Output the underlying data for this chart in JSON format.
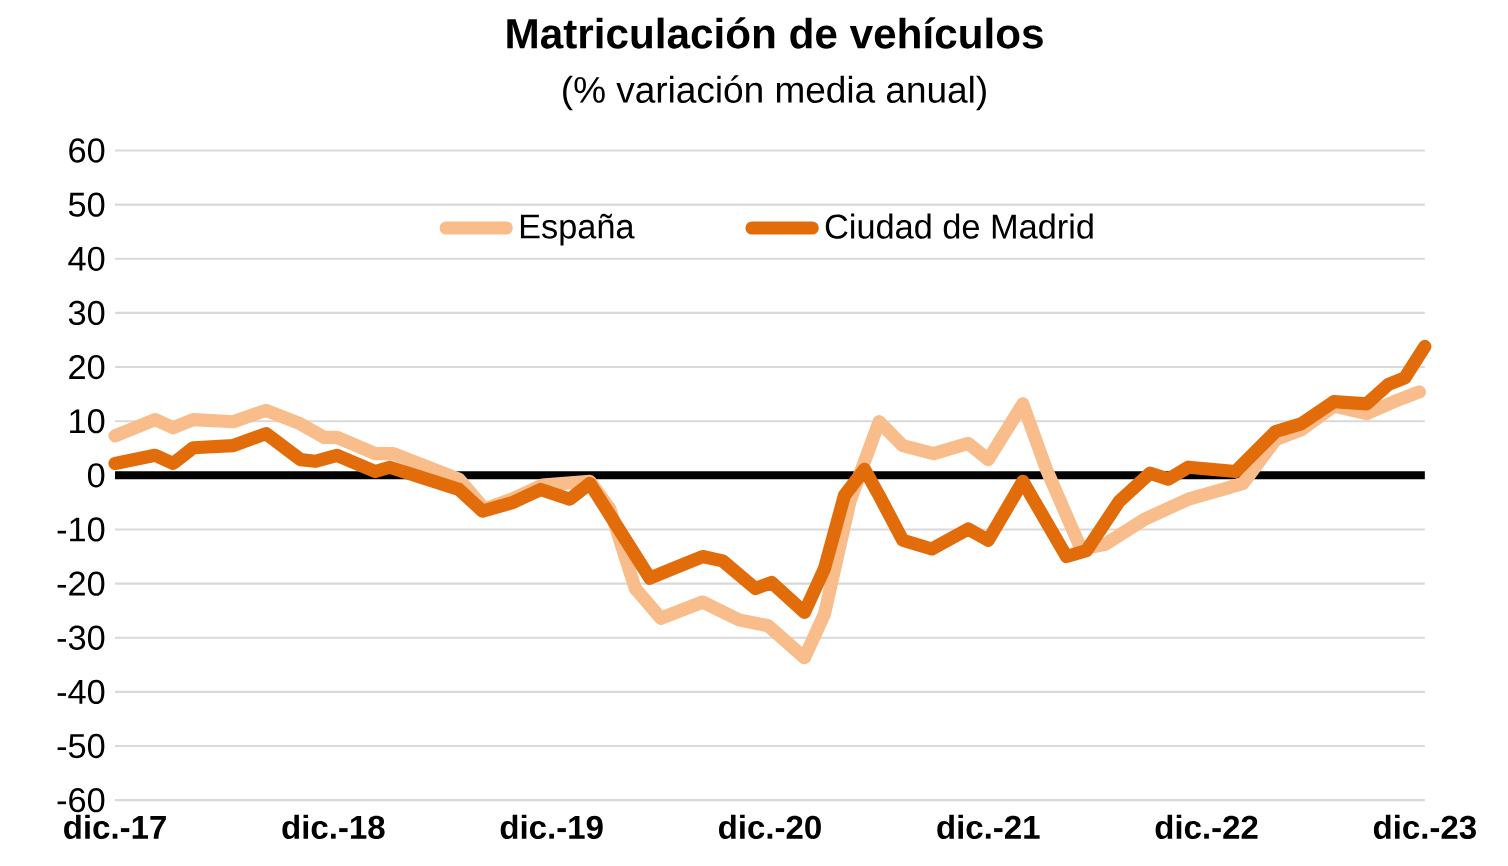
{
  "chart_data": {
    "type": "line",
    "title": "Matriculación de vehículos",
    "subtitle": "(% variación media anual)",
    "xlim": [
      "2017-12",
      "2023-12"
    ],
    "xticks": [
      {
        "value": "2017-12",
        "label": "dic.-17"
      },
      {
        "value": "2018-12",
        "label": "dic.-18"
      },
      {
        "value": "2019-12",
        "label": "dic.-19"
      },
      {
        "value": "2020-12",
        "label": "dic.-20"
      },
      {
        "value": "2021-12",
        "label": "dic.-21"
      },
      {
        "value": "2022-12",
        "label": "dic.-22"
      },
      {
        "value": "2023-12",
        "label": "dic.-23"
      }
    ],
    "ylim": [
      -60,
      60
    ],
    "yticks": [
      -60,
      -50,
      -40,
      -30,
      -20,
      -10,
      0,
      10,
      20,
      30,
      40,
      50,
      60
    ],
    "grid": "y",
    "legend": "top",
    "marker": "none",
    "line_style": "solid",
    "ref_lines": [
      {
        "axis": "y",
        "value": 0,
        "color": "#000000"
      }
    ],
    "series": [
      {
        "name": "España",
        "color": "#f9bd8c",
        "x": [
          "2017-12-01",
          "2018-02-07",
          "2018-03-07",
          "2018-04-10",
          "2018-06-16",
          "2018-08-10",
          "2018-10-07",
          "2018-11-16",
          "2018-12-07",
          "2019-02-10",
          "2019-03-10",
          "2019-06-28",
          "2019-08-10",
          "2019-09-25",
          "2019-11-16",
          "2020-02-04",
          "2020-03-07",
          "2020-04-19",
          "2020-06-01",
          "2020-08-10",
          "2020-10-10",
          "2020-11-28",
          "2021-01-28",
          "2021-03-01",
          "2021-04-13",
          "2021-06-01",
          "2021-07-10",
          "2021-09-01",
          "2021-10-28",
          "2021-12-01",
          "2022-01-28",
          "2022-03-07",
          "2022-05-04",
          "2022-06-13",
          "2022-08-19",
          "2022-11-01",
          "2022-12-28",
          "2023-02-01",
          "2023-03-25",
          "2023-05-07",
          "2023-07-01",
          "2023-08-25",
          "2023-10-10",
          "2023-11-22"
        ],
        "values": [
          7.3,
          10.3,
          8.8,
          10.3,
          9.9,
          12,
          9.5,
          7,
          7,
          4,
          4,
          -0.7,
          -6.2,
          -4.4,
          -1.8,
          -1.1,
          -6.2,
          -20.9,
          -26.4,
          -23.4,
          -26.7,
          -27.8,
          -33.7,
          -25.6,
          -4.8,
          9.9,
          5.5,
          4,
          5.9,
          2.9,
          13.2,
          1.1,
          -13.6,
          -12.8,
          -8.1,
          -4.4,
          -2.6,
          -1.5,
          6.6,
          8.4,
          12.8,
          11.4,
          13.6,
          15.4
        ]
      },
      {
        "name": "Ciudad de Madrid",
        "color": "#e36c0a",
        "x": [
          "2017-12-01",
          "2018-02-07",
          "2018-03-07",
          "2018-04-10",
          "2018-06-16",
          "2018-08-10",
          "2018-10-07",
          "2018-11-01",
          "2018-12-07",
          "2019-02-10",
          "2019-03-04",
          "2019-06-28",
          "2019-08-07",
          "2019-09-25",
          "2019-11-13",
          "2020-01-01",
          "2020-02-04",
          "2020-03-07",
          "2020-05-13",
          "2020-06-22",
          "2020-08-10",
          "2020-09-13",
          "2020-11-07",
          "2020-12-04",
          "2021-01-28",
          "2021-03-01",
          "2021-04-04",
          "2021-05-07",
          "2021-06-01",
          "2021-07-10",
          "2021-08-28",
          "2021-10-28",
          "2021-12-01",
          "2022-01-28",
          "2022-04-10",
          "2022-05-13",
          "2022-07-07",
          "2022-08-28",
          "2022-09-28",
          "2022-11-01",
          "2023-01-19",
          "2023-03-25",
          "2023-05-07",
          "2023-07-01",
          "2023-08-25",
          "2023-10-01",
          "2023-10-28",
          "2023-12-01"
        ],
        "values": [
          2.2,
          3.7,
          2.2,
          5.1,
          5.5,
          7.7,
          2.9,
          2.6,
          3.7,
          0.7,
          1.5,
          -2.6,
          -6.6,
          -5.1,
          -2.6,
          -4.4,
          -1.5,
          -7.3,
          -19,
          -17.2,
          -15,
          -15.8,
          -20.9,
          -19.8,
          -25.3,
          -17.2,
          -3.7,
          1.1,
          -3.7,
          -12,
          -13.6,
          -9.9,
          -12,
          -1.1,
          -15,
          -13.9,
          -4.8,
          0.4,
          -0.7,
          1.5,
          0.7,
          8.1,
          9.5,
          13.6,
          13.2,
          16.8,
          18,
          23.8
        ]
      }
    ]
  }
}
